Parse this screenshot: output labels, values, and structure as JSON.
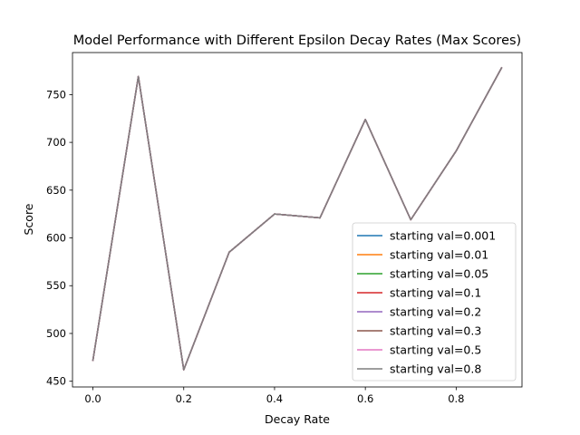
{
  "chart_data": {
    "type": "line",
    "title": "Model Performance with Different Epsilon Decay Rates (Max Scores)",
    "xlabel": "Decay Rate",
    "ylabel": "Score",
    "x": [
      0.0,
      0.1,
      0.2,
      0.3,
      0.4,
      0.5,
      0.6,
      0.7,
      0.8,
      0.9
    ],
    "xlim": [
      -0.045,
      0.945
    ],
    "ylim": [
      444,
      794
    ],
    "xticks": [
      0.0,
      0.2,
      0.4,
      0.6,
      0.8
    ],
    "xtick_labels": [
      "0.0",
      "0.2",
      "0.4",
      "0.6",
      "0.8"
    ],
    "yticks": [
      450,
      500,
      550,
      600,
      650,
      700,
      750
    ],
    "ytick_labels": [
      "450",
      "500",
      "550",
      "600",
      "650",
      "700",
      "750"
    ],
    "grid": false,
    "legend_position": "lower-right",
    "series": [
      {
        "name": "starting val=0.001",
        "color": "#1f77b4",
        "values": [
          472,
          769,
          462,
          585,
          625,
          621,
          724,
          619,
          691,
          778
        ]
      },
      {
        "name": "starting val=0.01",
        "color": "#ff7f0e",
        "values": [
          472,
          769,
          462,
          585,
          625,
          621,
          724,
          619,
          691,
          778
        ]
      },
      {
        "name": "starting val=0.05",
        "color": "#2ca02c",
        "values": [
          472,
          769,
          462,
          585,
          625,
          621,
          724,
          619,
          691,
          778
        ]
      },
      {
        "name": "starting val=0.1",
        "color": "#d62728",
        "values": [
          472,
          769,
          462,
          585,
          625,
          621,
          724,
          619,
          691,
          778
        ]
      },
      {
        "name": "starting val=0.2",
        "color": "#9467bd",
        "values": [
          472,
          769,
          462,
          585,
          625,
          621,
          724,
          619,
          691,
          778
        ]
      },
      {
        "name": "starting val=0.3",
        "color": "#8c564b",
        "values": [
          472,
          769,
          462,
          585,
          625,
          621,
          724,
          619,
          691,
          778
        ]
      },
      {
        "name": "starting val=0.5",
        "color": "#e377c2",
        "values": [
          472,
          769,
          462,
          585,
          625,
          621,
          724,
          619,
          691,
          778
        ]
      },
      {
        "name": "starting val=0.8",
        "color": "#7f7f7f",
        "values": [
          472,
          769,
          462,
          585,
          625,
          621,
          724,
          619,
          691,
          778
        ]
      }
    ]
  }
}
